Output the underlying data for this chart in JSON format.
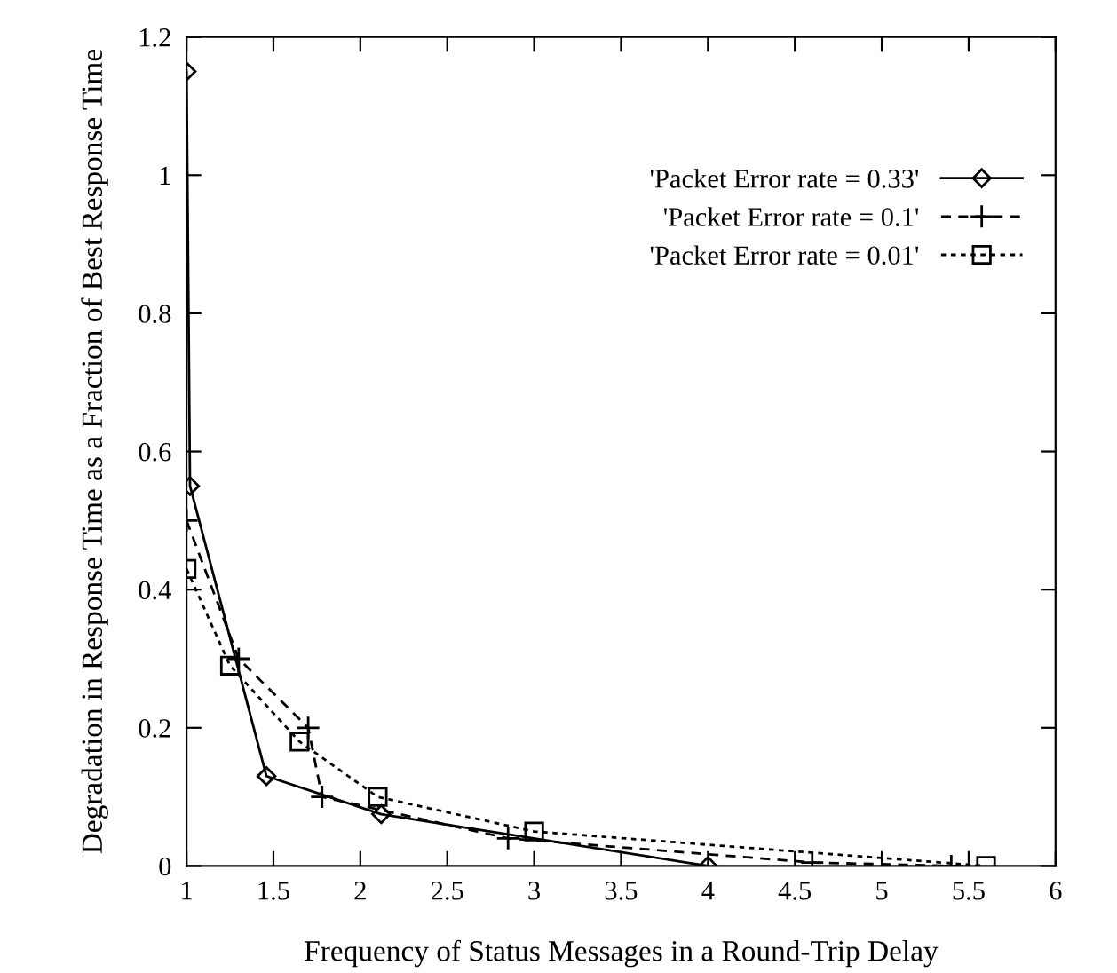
{
  "chart_data": {
    "type": "line",
    "xlabel": "Frequency of Status Messages in a Round-Trip Delay",
    "ylabel": "Degradation in Response Time as a Fraction of Best Response Time",
    "xlim": [
      1,
      6
    ],
    "xticks": [
      1,
      1.5,
      2,
      2.5,
      3,
      3.5,
      4,
      4.5,
      5,
      5.5,
      6
    ],
    "ylim": [
      0,
      1.2
    ],
    "yticks": [
      0,
      0.2,
      0.4,
      0.6,
      0.8,
      1,
      1.2
    ],
    "grid": false,
    "legend": "right",
    "series": [
      {
        "name": "'Packet Error rate = 0.33'",
        "color": "#000000",
        "marker": "diamond",
        "line_style": "solid",
        "x": [
          1,
          1.02,
          1.46,
          2.12,
          4
        ],
        "values": [
          1.15,
          0.55,
          0.13,
          0.075,
          0.0
        ]
      },
      {
        "name": "'Packet Error rate = 0.1'",
        "color": "#000000",
        "marker": "cross",
        "line_style": "dashed",
        "x": [
          1,
          1.3,
          1.7,
          1.78,
          2.85,
          4.6,
          5.4
        ],
        "values": [
          0.5,
          0.3,
          0.2,
          0.1,
          0.04,
          0.005,
          0.0
        ]
      },
      {
        "name": "'Packet Error rate = 0.01'",
        "color": "#000000",
        "marker": "square",
        "line_style": "dotted",
        "x": [
          1,
          1.25,
          1.65,
          2.1,
          3,
          5.6
        ],
        "values": [
          0.43,
          0.29,
          0.18,
          0.1,
          0.05,
          0.0
        ]
      }
    ]
  }
}
